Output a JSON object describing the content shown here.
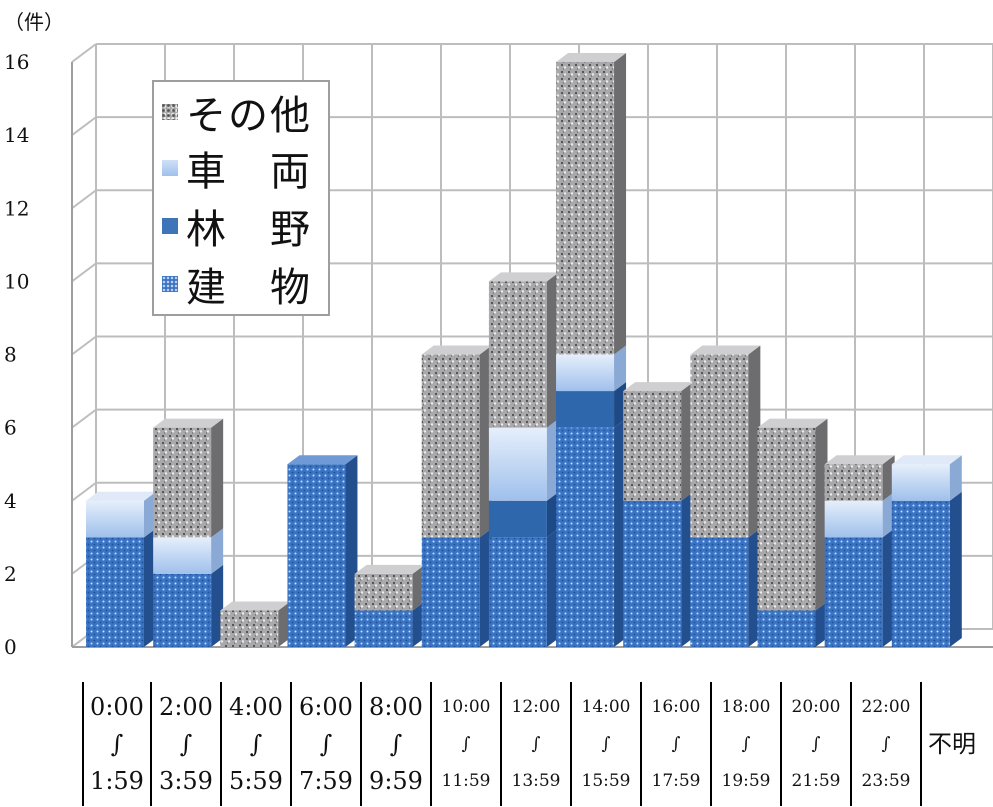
{
  "chart_data": {
    "type": "bar",
    "stacked": true,
    "unit": "（件）",
    "ylim": [
      0,
      16
    ],
    "yticks": [
      "0",
      "2",
      "4",
      "6",
      "8",
      "10",
      "12",
      "14",
      "16"
    ],
    "grid": true,
    "legend_position": "top-left",
    "categories": [
      {
        "start": "0:00",
        "sep": "∫",
        "end": "1:59"
      },
      {
        "start": "2:00",
        "sep": "∫",
        "end": "3:59"
      },
      {
        "start": "4:00",
        "sep": "∫",
        "end": "5:59"
      },
      {
        "start": "6:00",
        "sep": "∫",
        "end": "7:59"
      },
      {
        "start": "8:00",
        "sep": "∫",
        "end": "9:59"
      },
      {
        "start": "10:00",
        "sep": "∫",
        "end": "11:59"
      },
      {
        "start": "12:00",
        "sep": "∫",
        "end": "13:59"
      },
      {
        "start": "14:00",
        "sep": "∫",
        "end": "15:59"
      },
      {
        "start": "16:00",
        "sep": "∫",
        "end": "17:59"
      },
      {
        "start": "18:00",
        "sep": "∫",
        "end": "19:59"
      },
      {
        "start": "20:00",
        "sep": "∫",
        "end": "21:59"
      },
      {
        "start": "22:00",
        "sep": "∫",
        "end": "23:59"
      },
      {
        "label": "不明"
      }
    ],
    "series": [
      {
        "name": "建　物",
        "values": [
          3,
          2,
          0,
          5,
          1,
          3,
          3,
          6,
          4,
          3,
          1,
          3,
          4
        ],
        "color": "#3a74c2"
      },
      {
        "name": "林　野",
        "values": [
          0,
          0,
          0,
          0,
          0,
          0,
          1,
          1,
          0,
          0,
          0,
          0,
          0
        ],
        "color": "#2f67ad"
      },
      {
        "name": "車　両",
        "values": [
          1,
          1,
          0,
          0,
          0,
          0,
          2,
          1,
          0,
          0,
          0,
          1,
          1
        ],
        "color": "#c3d8f4"
      },
      {
        "name": "その他",
        "values": [
          0,
          3,
          1,
          0,
          1,
          5,
          4,
          8,
          3,
          5,
          5,
          1,
          0
        ],
        "color": "#a9a9ab"
      }
    ],
    "legend_order": [
      "その他",
      "車　両",
      "林　野",
      "建　物"
    ]
  }
}
